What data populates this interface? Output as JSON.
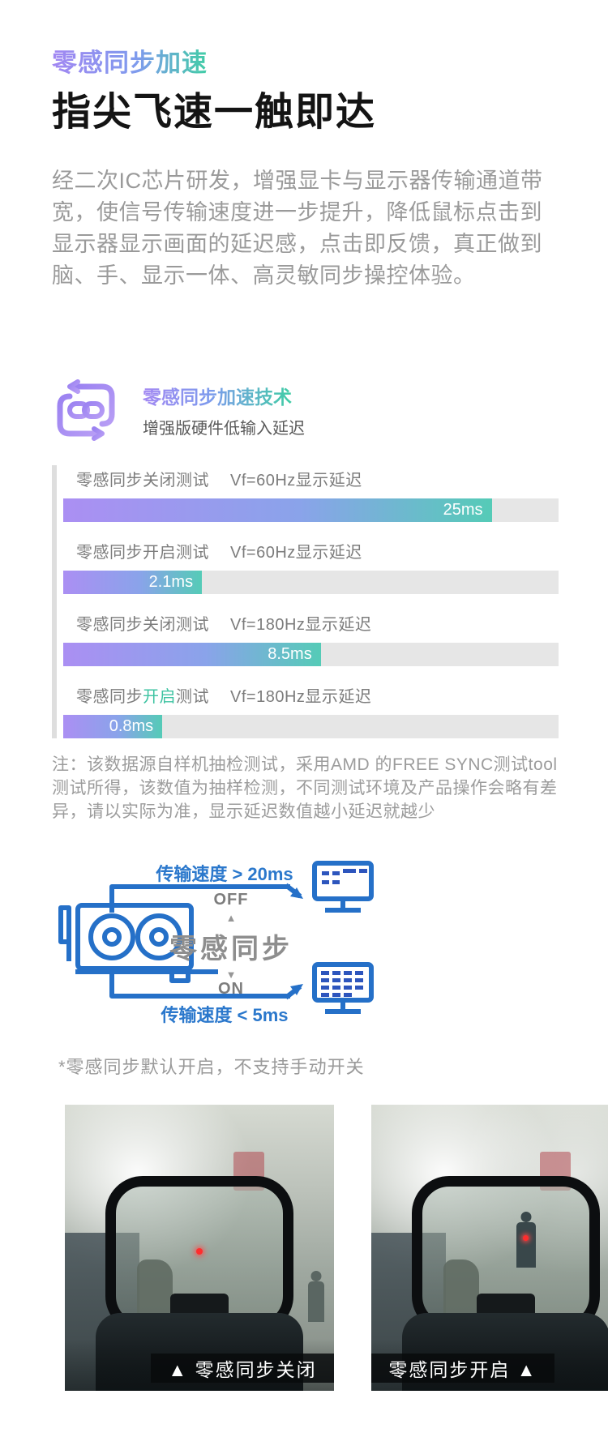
{
  "page": {
    "eyebrow": "零感同步加速",
    "title": "指尖飞速一触即达",
    "intro": "经二次IC芯片研发，增强显卡与显示器传输通道带宽，使信号传输速度进一步提升，降低鼠标点击到显示器显示画面的延迟感，点击即反馈，真正做到脑、手、显示一体、高灵敏同步操控体验。"
  },
  "feature": {
    "icon": "sync-link-icon",
    "title": "零感同步加速技术",
    "subtitle": "增强版硬件低输入延迟"
  },
  "chart_data": {
    "type": "bar",
    "orientation": "horizontal",
    "unit": "ms",
    "legend": "none",
    "grid": "off",
    "layout_hint": "bar lengths are illustrative, not linear to values; gray full-width track behind each bar",
    "rows": [
      {
        "label": "零感同步关闭测试",
        "label_em": "",
        "label_post": "",
        "condition": "Vf=60Hz显示延迟",
        "value_ms": 25,
        "value_label": "25ms",
        "bar_pct": 86.5
      },
      {
        "label": "零感同步开启测试",
        "label_em": "",
        "label_post": "",
        "condition": "Vf=60Hz显示延迟",
        "value_ms": 2.1,
        "value_label": "2.1ms",
        "bar_pct": 28
      },
      {
        "label": "零感同步关闭测试",
        "label_em": "",
        "label_post": "",
        "condition": "Vf=180Hz显示延迟",
        "value_ms": 8.5,
        "value_label": "8.5ms",
        "bar_pct": 52
      },
      {
        "label": "零感同步",
        "label_em": "开启",
        "label_post": "测试",
        "condition": "Vf=180Hz显示延迟",
        "value_ms": 0.8,
        "value_label": "0.8ms",
        "bar_pct": 20
      }
    ],
    "note": "注：该数据源自样机抽检测试，采用AMD 的FREE SYNC测试tool测试所得，该数值为抽样检测，不同测试环境及产品操作会略有差异，请以实际为准，显示延迟数值越小延迟就越少"
  },
  "diagram": {
    "gpu_icon": "gpu-graphics-card-icon",
    "monitor_laggy_icon": "monitor-partial-frame-icon",
    "monitor_full_icon": "monitor-full-frame-icon",
    "top_path_label": "传输速度 > 20ms",
    "bottom_path_label": "传输速度 < 5ms",
    "off_label": "OFF",
    "on_label": "ON",
    "up_triangle": "▲",
    "down_triangle": "▼",
    "center_label": "零感同步",
    "footnote": "*零感同步默认开启，不支持手动开关"
  },
  "comparison": {
    "left_caption": "▲  零感同步关闭",
    "right_caption": "零感同步开启 ▲"
  },
  "colors": {
    "accent_purple": "#a287f2",
    "accent_teal": "#41cda6",
    "highlight_teal": "#3ec3a2",
    "bar_gradient_start": "#ab8ff3",
    "bar_gradient_end": "#55cbb7",
    "bar_track": "#e6e6e6",
    "diagram_blue": "#2b78cc",
    "text_gray": "#9a9a9a"
  }
}
